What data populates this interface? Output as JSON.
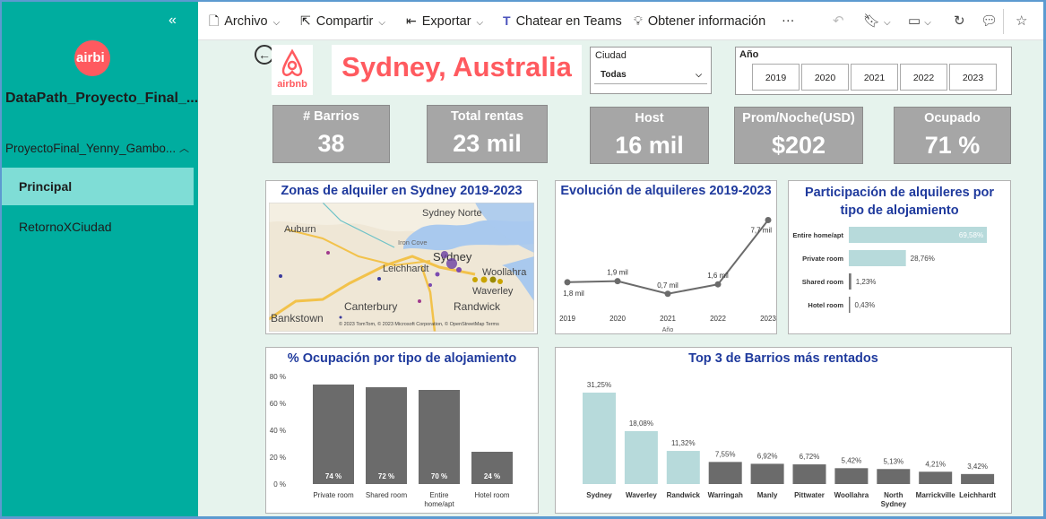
{
  "sidebar": {
    "workspace_title": "DataPath_Proyecto_Final_...",
    "report_name": "ProyectoFinal_Yenny_Gambo...",
    "pages": [
      {
        "label": "Principal"
      },
      {
        "label": "RetornoXCiudad"
      }
    ],
    "logo_text": "airbi"
  },
  "toolbar": {
    "archivo": "Archivo",
    "compartir": "Compartir",
    "exportar": "Exportar",
    "teams": "Chatear en Teams",
    "insights": "Obtener información",
    "more": "···"
  },
  "header": {
    "title": "Sydney, Australia",
    "brand": "airbnb",
    "city_label": "Ciudad",
    "city_value": "Todas",
    "year_label": "Año",
    "years": [
      "2019",
      "2020",
      "2021",
      "2022",
      "2023"
    ]
  },
  "kpis": [
    {
      "label": "# Barrios",
      "value": "38"
    },
    {
      "label": "Total rentas",
      "value": "23 mil"
    },
    {
      "label": "Host",
      "value": "16 mil"
    },
    {
      "label": "Prom/Noche(USD)",
      "value": "$202"
    },
    {
      "label": "Ocupado",
      "value": "71 %"
    }
  ],
  "map": {
    "title": "Zonas de alquiler en Sydney 2019-2023",
    "places": [
      "Sydney Norte",
      "Auburn",
      "Iron Cove",
      "Leichhardt",
      "Sydney",
      "Woollahra",
      "Waverley",
      "Canterbury",
      "Randwick",
      "Bankstown"
    ],
    "attribution": "© 2023 TomTom, © 2023 Microsoft Corporation, © OpenStreetMap  Terms"
  },
  "chart_data": [
    {
      "type": "line",
      "title": "Evolución de alquileres 2019-2023",
      "xlabel": "Año",
      "x": [
        "2019",
        "2020",
        "2021",
        "2022",
        "2023"
      ],
      "values": [
        1.8,
        1.9,
        0.7,
        1.6,
        7.7
      ],
      "data_labels": [
        "1,8 mil",
        "1,9 mil",
        "0,7 mil",
        "1,6 mil",
        "7,7 mil"
      ],
      "color": "#6b6b6b"
    },
    {
      "type": "bar",
      "orientation": "horizontal",
      "title": "Participación de alquileres por tipo de alojamiento",
      "categories": [
        "Entire home/apt",
        "Private room",
        "Shared room",
        "Hotel room"
      ],
      "values": [
        69.58,
        28.76,
        1.23,
        0.43
      ],
      "data_labels": [
        "69,58%",
        "28,76%",
        "1,23%",
        "0,43%"
      ],
      "color": "#b7dadb"
    },
    {
      "type": "bar",
      "title": "% Ocupación por tipo de alojamiento",
      "categories": [
        "Private room",
        "Shared room",
        "Entire home/apt",
        "Hotel room"
      ],
      "values": [
        74,
        72,
        70,
        24
      ],
      "data_labels": [
        "74 %",
        "72 %",
        "70 %",
        "24 %"
      ],
      "ylim": [
        0,
        80
      ],
      "yticks": [
        "0 %",
        "20 %",
        "40 %",
        "60 %",
        "80 %"
      ],
      "color": "#6b6b6b"
    },
    {
      "type": "bar",
      "title": "Top 3 de Barrios más rentados",
      "categories": [
        "Sydney",
        "Waverley",
        "Randwick",
        "Warringah",
        "Manly",
        "Pittwater",
        "Woollahra",
        "North Sydney",
        "Marrickville",
        "Leichhardt"
      ],
      "values": [
        31.25,
        18.08,
        11.32,
        7.55,
        6.92,
        6.72,
        5.42,
        5.13,
        4.21,
        3.42
      ],
      "data_labels": [
        "31,25%",
        "18,08%",
        "11,32%",
        "7,55%",
        "6,92%",
        "6,72%",
        "5,42%",
        "5,13%",
        "4,21%",
        "3,42%"
      ],
      "highlight_color": "#b7dadb",
      "color": "#6b6b6b"
    }
  ]
}
